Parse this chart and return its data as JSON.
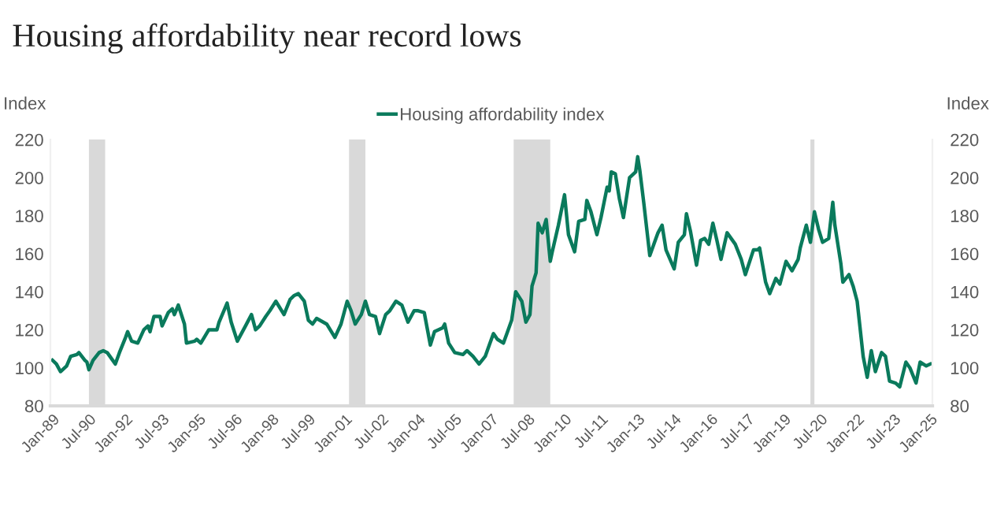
{
  "chart_data": {
    "type": "line",
    "title": "Housing affordability near record lows",
    "ylabel": "Index",
    "y2label": "Index",
    "xlim": [
      "1988-12",
      "2025-02"
    ],
    "ylim": [
      80,
      220
    ],
    "yticks": [
      80,
      100,
      120,
      140,
      160,
      180,
      200,
      220
    ],
    "y2lim": [
      80,
      220
    ],
    "y2ticks": [
      80,
      100,
      120,
      140,
      160,
      180,
      200,
      220
    ],
    "xticks": [
      {
        "value": "1989-01",
        "label": "Jan-89"
      },
      {
        "value": "1990-07",
        "label": "Jul-90"
      },
      {
        "value": "1992-01",
        "label": "Jan-92"
      },
      {
        "value": "1993-07",
        "label": "Jul-93"
      },
      {
        "value": "1995-01",
        "label": "Jan-95"
      },
      {
        "value": "1996-07",
        "label": "Jul-96"
      },
      {
        "value": "1998-01",
        "label": "Jan-98"
      },
      {
        "value": "1999-07",
        "label": "Jul-99"
      },
      {
        "value": "2001-01",
        "label": "Jan-01"
      },
      {
        "value": "2002-07",
        "label": "Jul-02"
      },
      {
        "value": "2004-01",
        "label": "Jan-04"
      },
      {
        "value": "2005-07",
        "label": "Jul-05"
      },
      {
        "value": "2007-01",
        "label": "Jan-07"
      },
      {
        "value": "2008-07",
        "label": "Jul-08"
      },
      {
        "value": "2010-01",
        "label": "Jan-10"
      },
      {
        "value": "2011-07",
        "label": "Jul-11"
      },
      {
        "value": "2013-01",
        "label": "Jan-13"
      },
      {
        "value": "2014-07",
        "label": "Jul-14"
      },
      {
        "value": "2016-01",
        "label": "Jan-16"
      },
      {
        "value": "2017-07",
        "label": "Jul-17"
      },
      {
        "value": "2019-01",
        "label": "Jan-19"
      },
      {
        "value": "2020-07",
        "label": "Jul-20"
      },
      {
        "value": "2022-01",
        "label": "Jan-22"
      },
      {
        "value": "2023-07",
        "label": "Jul-23"
      },
      {
        "value": "2025-01",
        "label": "Jan-25"
      }
    ],
    "bands": [
      {
        "axis": "x",
        "from": "1990-07",
        "to": "1991-03",
        "color": "#d9d9d9"
      },
      {
        "axis": "x",
        "from": "2001-03",
        "to": "2001-11",
        "color": "#d9d9d9"
      },
      {
        "axis": "x",
        "from": "2007-12",
        "to": "2009-06",
        "color": "#d9d9d9"
      },
      {
        "axis": "x",
        "from": "2020-02",
        "to": "2020-04",
        "color": "#d9d9d9"
      }
    ],
    "legend": "top",
    "grid": false,
    "series": [
      {
        "name": "Housing affordability index",
        "color": "#0a7a5c",
        "x": [
          "1989-01",
          "1989-03",
          "1989-05",
          "1989-08",
          "1989-10",
          "1990-01",
          "1990-02",
          "1990-05",
          "1990-06",
          "1990-07",
          "1990-09",
          "1990-12",
          "1991-02",
          "1991-04",
          "1991-08",
          "1991-10",
          "1992-01",
          "1992-02",
          "1992-04",
          "1992-07",
          "1992-10",
          "1992-12",
          "1993-01",
          "1993-03",
          "1993-06",
          "1993-07",
          "1993-10",
          "1993-12",
          "1994-01",
          "1994-03",
          "1994-06",
          "1994-07",
          "1994-11",
          "1994-12",
          "1995-02",
          "1995-06",
          "1995-10",
          "1995-11",
          "1996-03",
          "1996-05",
          "1996-08",
          "1996-12",
          "1997-03",
          "1997-05",
          "1997-07",
          "1997-10",
          "1997-12",
          "1998-03",
          "1998-07",
          "1998-10",
          "1998-12",
          "1999-02",
          "1999-05",
          "1999-07",
          "1999-09",
          "1999-11",
          "2000-04",
          "2000-08",
          "2000-11",
          "2001-02",
          "2001-04",
          "2001-06",
          "2001-09",
          "2001-11",
          "2002-01",
          "2002-04",
          "2002-06",
          "2002-09",
          "2002-11",
          "2003-02",
          "2003-05",
          "2003-08",
          "2003-11",
          "2004-01",
          "2004-04",
          "2004-07",
          "2004-09",
          "2005-01",
          "2005-02",
          "2005-04",
          "2005-07",
          "2005-11",
          "2006-01",
          "2006-04",
          "2006-07",
          "2006-10",
          "2006-12",
          "2007-02",
          "2007-04",
          "2007-07",
          "2007-09",
          "2007-11",
          "2008-01",
          "2008-04",
          "2008-06",
          "2008-08",
          "2008-09",
          "2008-11",
          "2008-12",
          "2009-02",
          "2009-04",
          "2009-06",
          "2009-07",
          "2009-10",
          "2010-01",
          "2010-03",
          "2010-06",
          "2010-08",
          "2010-11",
          "2010-12",
          "2011-02",
          "2011-05",
          "2011-07",
          "2011-10",
          "2011-11",
          "2011-12",
          "2012-02",
          "2012-04",
          "2012-06",
          "2012-09",
          "2012-12",
          "2013-01",
          "2013-02",
          "2013-04",
          "2013-07",
          "2013-10",
          "2013-11",
          "2014-01",
          "2014-03",
          "2014-07",
          "2014-09",
          "2014-12",
          "2015-01",
          "2015-03",
          "2015-06",
          "2015-08",
          "2015-10",
          "2015-12",
          "2016-02",
          "2016-04",
          "2016-06",
          "2016-09",
          "2016-11",
          "2017-01",
          "2017-04",
          "2017-06",
          "2017-10",
          "2017-12",
          "2018-01",
          "2018-04",
          "2018-06",
          "2018-09",
          "2018-11",
          "2019-02",
          "2019-05",
          "2019-08",
          "2019-09",
          "2019-12",
          "2020-02",
          "2020-04",
          "2020-06",
          "2020-08",
          "2020-11",
          "2021-01",
          "2021-02",
          "2021-05",
          "2021-06",
          "2021-09",
          "2021-11",
          "2022-01",
          "2022-04",
          "2022-06",
          "2022-08",
          "2022-10",
          "2023-01",
          "2023-03",
          "2023-05",
          "2023-08",
          "2023-10",
          "2024-01",
          "2024-03",
          "2024-06",
          "2024-08",
          "2024-11",
          "2025-01"
        ],
        "values": [
          104,
          102,
          98,
          101,
          106,
          107,
          108,
          104,
          103,
          99,
          104,
          108,
          109,
          108,
          102,
          108,
          116,
          119,
          114,
          113,
          120,
          122,
          119,
          127,
          127,
          122,
          129,
          131,
          128,
          133,
          123,
          113,
          114,
          115,
          113,
          120,
          120,
          124,
          134,
          124,
          114,
          122,
          128,
          120,
          122,
          127,
          130,
          135,
          128,
          136,
          138,
          139,
          135,
          125,
          123,
          126,
          123,
          116,
          123,
          135,
          130,
          123,
          128,
          135,
          128,
          127,
          118,
          128,
          130,
          135,
          133,
          124,
          130,
          130,
          129,
          112,
          119,
          121,
          123,
          113,
          108,
          107,
          109,
          106,
          102,
          106,
          112,
          118,
          115,
          113,
          119,
          125,
          140,
          135,
          124,
          128,
          143,
          150,
          176,
          171,
          178,
          156,
          161,
          175,
          191,
          170,
          161,
          177,
          178,
          188,
          182,
          170,
          179,
          195,
          193,
          203,
          202,
          189,
          179,
          200,
          203,
          211,
          204,
          187,
          159,
          168,
          171,
          175,
          162,
          152,
          166,
          170,
          181,
          172,
          154,
          167,
          168,
          165,
          176,
          167,
          157,
          171,
          168,
          165,
          157,
          149,
          162,
          162,
          163,
          145,
          139,
          147,
          144,
          156,
          151,
          157,
          163,
          175,
          166,
          182,
          173,
          166,
          168,
          187,
          175,
          155,
          145,
          149,
          143,
          135,
          106,
          95,
          109,
          98,
          108,
          106,
          93,
          92,
          90,
          103,
          100,
          92,
          103,
          101,
          102
        ]
      }
    ]
  }
}
